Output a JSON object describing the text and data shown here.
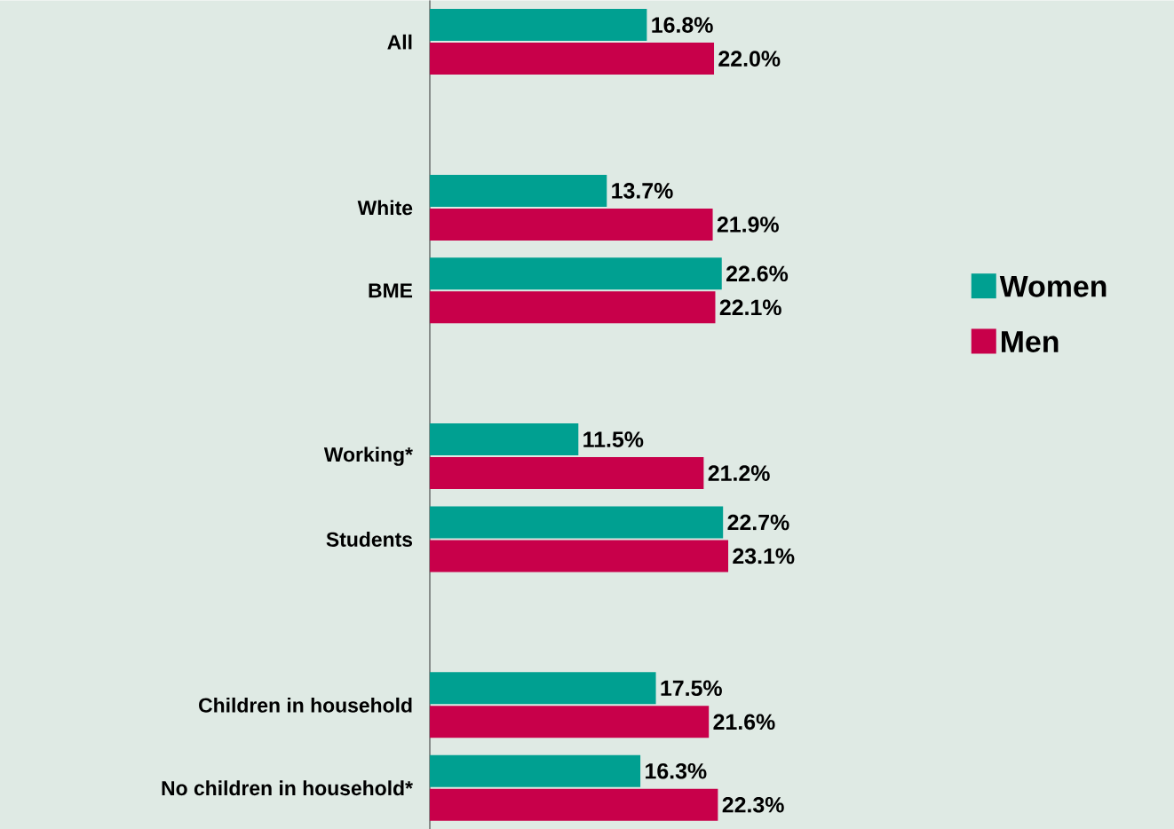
{
  "chart_data": {
    "type": "bar",
    "orientation": "horizontal",
    "legend": "right",
    "categories": [
      "All",
      null,
      "White",
      "BME",
      null,
      "Working*",
      "Students",
      null,
      "Children in household",
      "No children in household*"
    ],
    "series": [
      {
        "name": "Women",
        "color": "#00a091",
        "values": [
          16.8,
          null,
          13.7,
          22.6,
          null,
          11.5,
          22.7,
          null,
          17.5,
          16.3
        ],
        "value_labels": [
          "16.8%",
          null,
          "13.7%",
          "22.6%",
          null,
          "11.5%",
          "22.7%",
          null,
          "17.5%",
          "16.3%"
        ]
      },
      {
        "name": "Men",
        "color": "#c8004a",
        "values": [
          22.0,
          null,
          21.9,
          22.1,
          null,
          21.2,
          23.1,
          null,
          21.6,
          22.3
        ],
        "value_labels": [
          "22.0%",
          null,
          "21.9%",
          "22.1%",
          null,
          "21.2%",
          "23.1%",
          null,
          "21.6%",
          "22.3%"
        ]
      }
    ]
  }
}
